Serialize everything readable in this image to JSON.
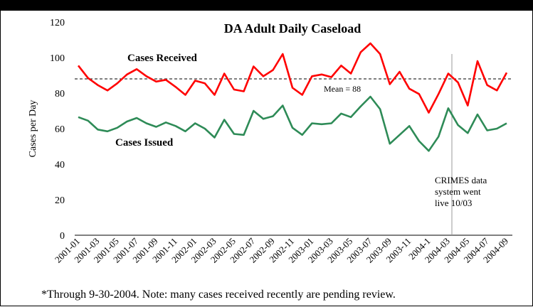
{
  "chart_data": {
    "type": "line",
    "title": "DA Adult Daily Caseload",
    "xlabel": "",
    "ylabel": "Cases per Day",
    "ylim": [
      0,
      120
    ],
    "yticks": [
      0,
      20,
      40,
      60,
      80,
      100,
      120
    ],
    "grid": false,
    "x": [
      "2001-01",
      "2001-02",
      "2001-03",
      "2001-04",
      "2001-05",
      "2001-06",
      "2001-07",
      "2001-08",
      "2001-09",
      "2001-10",
      "2001-11",
      "2001-12",
      "2002-01",
      "2002-02",
      "2002-03",
      "2002-04",
      "2002-05",
      "2002-06",
      "2002-07",
      "2002-08",
      "2002-09",
      "2002-10",
      "2002-11",
      "2002-12",
      "2003-01",
      "2003-02",
      "2003-03",
      "2003-04",
      "2003-05",
      "2003-06",
      "2003-07",
      "2003-08",
      "2003-09",
      "2003-10",
      "2003-11",
      "2003-12",
      "2004-1",
      "2004-02",
      "2004-03",
      "2004-04",
      "2004-05",
      "2004-06",
      "2004-07",
      "2004-08",
      "2004-09"
    ],
    "xtick_labels": [
      "2001-01",
      "2001-03",
      "2001-05",
      "2001-07",
      "2001-09",
      "2001-11",
      "2002-01",
      "2002-03",
      "2002-05",
      "2002-07",
      "2002-09",
      "2002-11",
      "2003-01",
      "2003-03",
      "2003-05",
      "2003-07",
      "2003-09",
      "2003-11",
      "2004-1",
      "2004-03",
      "2004-05",
      "2004-07",
      "2004-09"
    ],
    "series": [
      {
        "name": "Cases Received",
        "color": "#ff0000",
        "values": [
          95.5,
          88.5,
          84.5,
          81.5,
          85.5,
          90.5,
          93.5,
          89.5,
          86.5,
          87.5,
          83.5,
          79,
          87,
          85.5,
          79,
          91,
          82,
          81,
          95,
          89.5,
          93,
          102,
          83,
          79,
          89.5,
          90.5,
          89,
          95.5,
          91,
          103,
          108,
          102,
          85,
          92,
          82.5,
          79.5,
          69,
          79.5,
          91,
          86,
          73,
          98,
          84.5,
          81.5,
          91.5
        ]
      },
      {
        "name": "Cases Issued",
        "color": "#2e8b57",
        "values": [
          66.5,
          64.5,
          59.5,
          58.5,
          60.5,
          64,
          66,
          63,
          61,
          63.5,
          61.5,
          58.5,
          63,
          60,
          55,
          65,
          57,
          56.5,
          70,
          65.5,
          67,
          73,
          60.5,
          56.5,
          63,
          62.5,
          63,
          68.5,
          66.5,
          72.5,
          78,
          71,
          51.5,
          56.5,
          61.5,
          53,
          47.5,
          55.5,
          71.5,
          62,
          57.5,
          68,
          59,
          60,
          63
        ]
      }
    ],
    "mean_line": {
      "value": 88,
      "label": "Mean = 88",
      "style": "dashed"
    },
    "annotations": {
      "received_label": "Cases Received",
      "issued_label": "Cases Issued",
      "crimes_line": [
        "CRIMES data",
        "system went",
        "live 10/03"
      ]
    },
    "footnote": "*Through 9-30-2004.  Note: many cases received recently are pending review."
  }
}
